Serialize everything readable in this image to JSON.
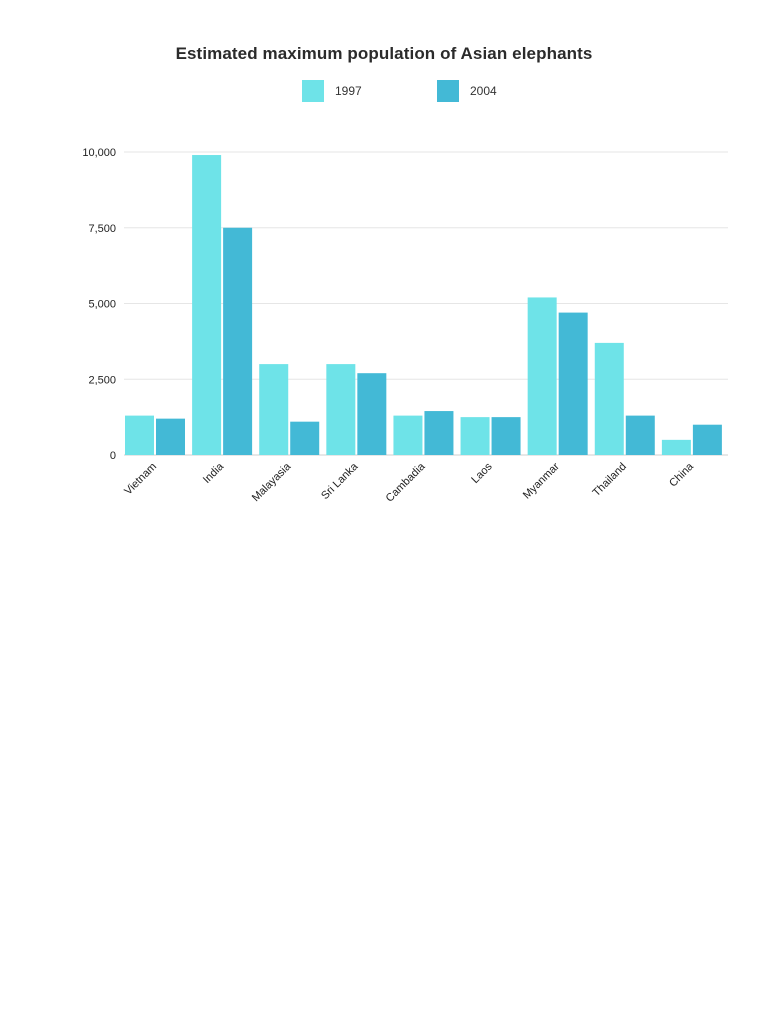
{
  "chart_data": {
    "type": "bar",
    "title": "Estimated maximum population of Asian elephants",
    "xlabel": "",
    "ylabel": "",
    "categories": [
      "Vietnam",
      "India",
      "Malayasia",
      "Sri Lanka",
      "Cambadia",
      "Laos",
      "Myanmar",
      "Thailand",
      "China"
    ],
    "series": [
      {
        "name": "1997",
        "color": "#6ee3e8",
        "values": [
          1300,
          9900,
          3000,
          3000,
          1300,
          1250,
          5200,
          3700,
          500
        ]
      },
      {
        "name": "2004",
        "color": "#43b9d6",
        "values": [
          1200,
          7500,
          1100,
          2700,
          1450,
          1250,
          4700,
          1300,
          1000
        ]
      }
    ],
    "ylim": [
      0,
      10000
    ],
    "y_ticks": [
      {
        "value": 0,
        "label": "0"
      },
      {
        "value": 2500,
        "label": "2,500"
      },
      {
        "value": 5000,
        "label": "5,000"
      },
      {
        "value": 7500,
        "label": "7,500"
      },
      {
        "value": 10000,
        "label": "10,000"
      }
    ],
    "grid": true,
    "legend_position": "top-center"
  }
}
